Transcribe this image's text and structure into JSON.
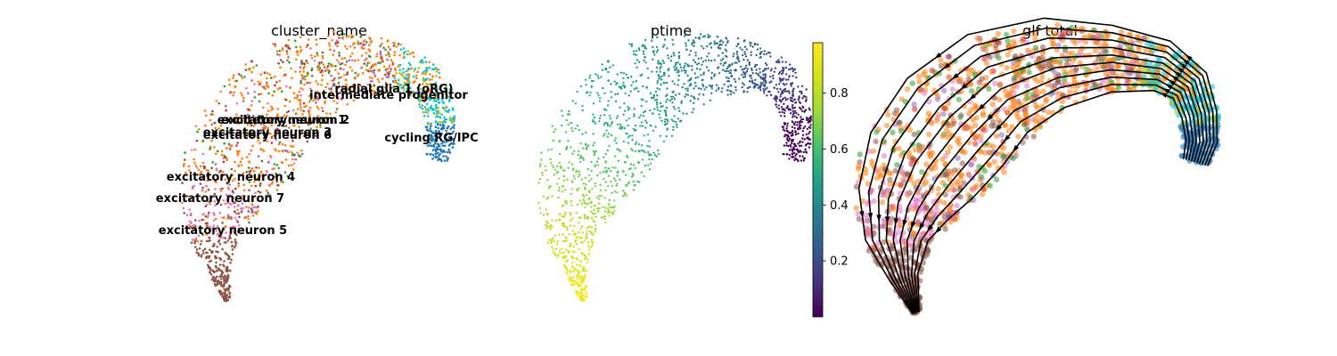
{
  "chart_data": [
    {
      "type": "scatter",
      "title": "cluster_name",
      "xlabel": "",
      "ylabel": "",
      "axes_visible": false,
      "cluster_labels": [
        "radial glia 1 (oRG)",
        "intermediate progenitor",
        "excitatory neuron 1",
        "excitatory neuron 2",
        "excitatory neuron 3",
        "excitatory neuron 6",
        "cycling RG/IPC",
        "excitatory neuron 4",
        "excitatory neuron 7",
        "excitatory neuron 5"
      ]
    },
    {
      "type": "scatter",
      "title": "ptime",
      "xlabel": "",
      "ylabel": "",
      "axes_visible": false,
      "colormap": "viridis",
      "colorbar": {
        "range": [
          0.0,
          0.98
        ],
        "ticks": [
          0.2,
          0.4,
          0.6,
          0.8
        ],
        "tick_labels": [
          "0.2",
          "0.4",
          "0.6",
          "0.8"
        ]
      }
    },
    {
      "type": "scatter",
      "title": "glf total",
      "xlabel": "",
      "ylabel": "",
      "axes_visible": false,
      "overlay": "velocity streamlines"
    }
  ],
  "colors": {
    "radial_glia": "#17becf",
    "intermediate_progenitor": "#bcbd22",
    "cycling": "#1f77b4",
    "neuron_orange": "#ff7f0e",
    "neuron_brown": "#8c564b",
    "neuron_pink": "#e377c2",
    "neuron_green": "#2ca02c",
    "neuron_red": "#d62728",
    "neuron_purple": "#9467bd",
    "streamline": "#000000"
  }
}
